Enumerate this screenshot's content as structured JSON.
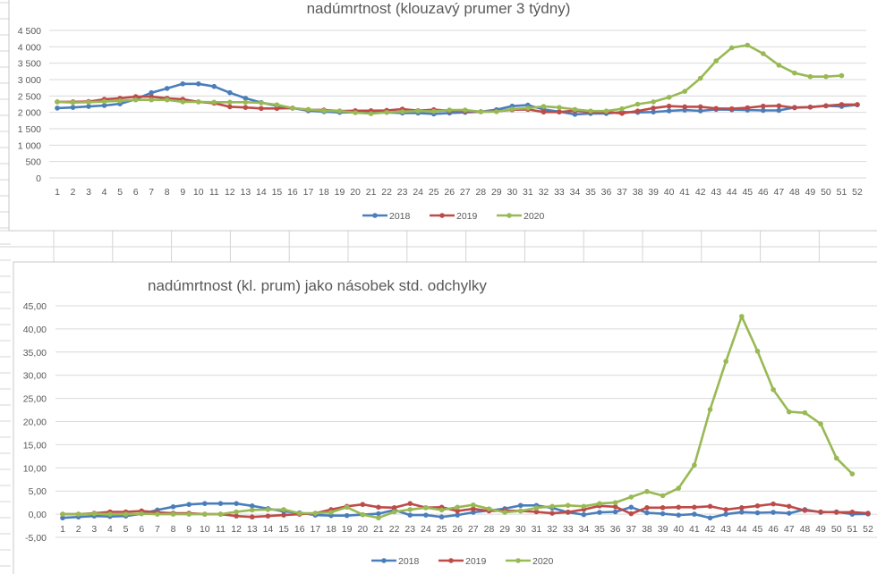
{
  "colors": {
    "2018": "#4a7ebb",
    "2019": "#be4b48",
    "2020": "#98b954",
    "grid": "#d9d9d9",
    "sheet": "#d4d4d4"
  },
  "chart_data": [
    {
      "type": "line",
      "title": "nadúmrtnost (klouzavý prumer 3 týdny)",
      "xlabel": "",
      "ylabel": "",
      "ylim": [
        0,
        4500
      ],
      "yticks": [
        0,
        500,
        1000,
        1500,
        2000,
        2500,
        3000,
        3500,
        4000,
        4500
      ],
      "ytick_labels": [
        "0",
        "500",
        "1 000",
        "1 500",
        "2 000",
        "2 500",
        "3 000",
        "3 500",
        "4 000",
        "4 500"
      ],
      "grid": true,
      "legend": "bottom",
      "x": [
        1,
        2,
        3,
        4,
        5,
        6,
        7,
        8,
        9,
        10,
        11,
        12,
        13,
        14,
        15,
        16,
        17,
        18,
        19,
        20,
        21,
        22,
        23,
        24,
        25,
        26,
        27,
        28,
        29,
        30,
        31,
        32,
        33,
        34,
        35,
        36,
        37,
        38,
        39,
        40,
        41,
        42,
        43,
        44,
        45,
        46,
        47,
        48,
        49,
        50,
        51,
        52
      ],
      "series": [
        {
          "name": "2018",
          "values": [
            2130,
            2150,
            2180,
            2210,
            2260,
            2400,
            2600,
            2730,
            2870,
            2870,
            2790,
            2600,
            2430,
            2300,
            2200,
            2130,
            2050,
            2020,
            2000,
            2000,
            2000,
            2000,
            1980,
            1980,
            1950,
            1980,
            2000,
            2020,
            2080,
            2190,
            2220,
            2090,
            2020,
            1940,
            1965,
            1965,
            2010,
            2000,
            2010,
            2045,
            2070,
            2045,
            2090,
            2080,
            2070,
            2060,
            2060,
            2150,
            2160,
            2200,
            2180,
            2230
          ]
        },
        {
          "name": "2019",
          "values": [
            2320,
            2320,
            2330,
            2400,
            2430,
            2480,
            2480,
            2430,
            2400,
            2320,
            2280,
            2170,
            2150,
            2120,
            2120,
            2130,
            2080,
            2070,
            2040,
            2050,
            2050,
            2060,
            2100,
            2050,
            2080,
            2050,
            2040,
            2020,
            2030,
            2080,
            2090,
            2010,
            2010,
            2050,
            2010,
            2010,
            1970,
            2040,
            2130,
            2190,
            2170,
            2170,
            2120,
            2110,
            2140,
            2190,
            2200,
            2140,
            2160,
            2200,
            2240,
            2240
          ]
        },
        {
          "name": "2020",
          "values": [
            2320,
            2300,
            2310,
            2330,
            2350,
            2380,
            2380,
            2380,
            2320,
            2320,
            2310,
            2310,
            2310,
            2290,
            2230,
            2130,
            2090,
            2050,
            2040,
            1990,
            1960,
            2000,
            2020,
            2040,
            2030,
            2070,
            2070,
            2020,
            2020,
            2100,
            2130,
            2180,
            2150,
            2090,
            2040,
            2040,
            2110,
            2250,
            2320,
            2460,
            2640,
            3040,
            3570,
            3970,
            4050,
            3790,
            3440,
            3200,
            3090,
            3090,
            3120,
            null
          ]
        }
      ]
    },
    {
      "type": "line",
      "title": "nadúmrtnost (kl. prum) jako násobek std. odchylky",
      "xlabel": "",
      "ylabel": "",
      "ylim": [
        -5,
        45
      ],
      "yticks": [
        -5,
        0,
        5,
        10,
        15,
        20,
        25,
        30,
        35,
        40,
        45
      ],
      "ytick_labels": [
        "-5,00",
        "0,00",
        "5,00",
        "10,00",
        "15,00",
        "20,00",
        "25,00",
        "30,00",
        "35,00",
        "40,00",
        "45,00"
      ],
      "grid": true,
      "legend": "bottom",
      "x": [
        1,
        2,
        3,
        4,
        5,
        6,
        7,
        8,
        9,
        10,
        11,
        12,
        13,
        14,
        15,
        16,
        17,
        18,
        19,
        20,
        21,
        22,
        23,
        24,
        25,
        26,
        27,
        28,
        29,
        30,
        31,
        32,
        33,
        34,
        35,
        36,
        37,
        38,
        39,
        40,
        41,
        42,
        43,
        44,
        45,
        46,
        47,
        48,
        49,
        50,
        51,
        52
      ],
      "series": [
        {
          "name": "2018",
          "values": [
            -0.8,
            -0.6,
            -0.4,
            -0.5,
            -0.4,
            0.1,
            0.9,
            1.6,
            2.1,
            2.3,
            2.3,
            2.3,
            1.8,
            1.2,
            0.6,
            0.3,
            -0.2,
            -0.3,
            -0.3,
            -0.1,
            0.1,
            0.9,
            -0.2,
            -0.2,
            -0.6,
            -0.2,
            0.4,
            0.8,
            1.2,
            1.9,
            1.9,
            1.35,
            0.4,
            -0.1,
            0.4,
            0.5,
            1.5,
            0.3,
            0.1,
            -0.2,
            0,
            -0.8,
            0,
            0.45,
            0.3,
            0.4,
            0.2,
            1.0,
            0.4,
            0.5,
            0,
            0.05
          ]
        },
        {
          "name": "2019",
          "values": [
            0,
            0,
            0.2,
            0.5,
            0.5,
            0.7,
            0.4,
            0.2,
            0.2,
            0,
            0,
            -0.4,
            -0.6,
            -0.4,
            -0.2,
            0,
            0.2,
            1.0,
            1.7,
            2.1,
            1.5,
            1.4,
            2.3,
            1.4,
            1.5,
            0.7,
            1.15,
            0.7,
            0.8,
            0.7,
            0.5,
            0.2,
            0.45,
            1.0,
            1.8,
            1.6,
            0.1,
            1.4,
            1.4,
            1.5,
            1.5,
            1.7,
            1.0,
            1.4,
            1.8,
            2.2,
            1.7,
            0.8,
            0.5,
            0.4,
            0.45,
            0.2
          ]
        },
        {
          "name": "2020",
          "values": [
            0,
            0,
            0.1,
            0,
            0,
            0.1,
            0,
            0,
            0,
            0,
            0,
            0.5,
            0.9,
            1.0,
            1.0,
            0.2,
            0.2,
            0.4,
            1.5,
            -0.1,
            -0.8,
            0.5,
            1.0,
            1.4,
            0.9,
            1.5,
            2.0,
            1.15,
            0.4,
            0.7,
            1.35,
            1.7,
            1.9,
            1.7,
            2.3,
            2.5,
            3.7,
            4.9,
            4.0,
            5.6,
            10.6,
            22.6,
            33.0,
            42.7,
            35.2,
            26.9,
            22.1,
            21.9,
            19.5,
            12.1,
            8.7,
            null
          ]
        }
      ]
    }
  ]
}
